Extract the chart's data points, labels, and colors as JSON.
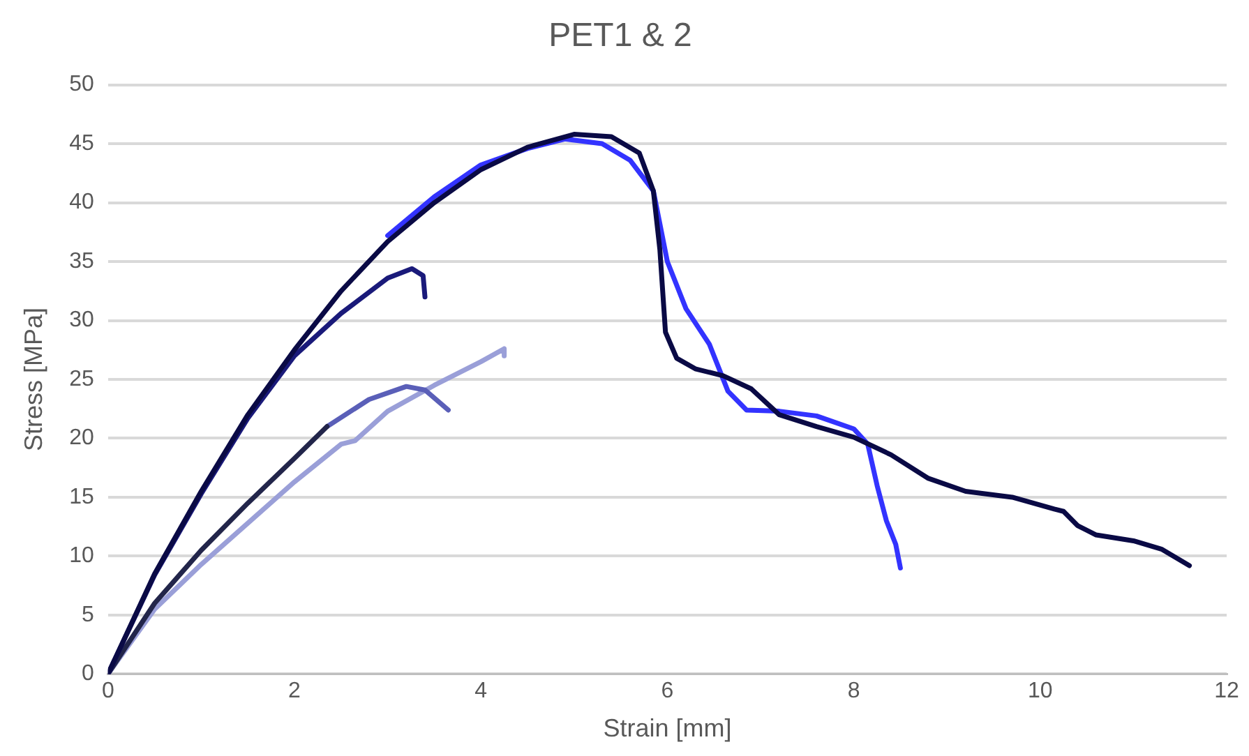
{
  "chart_data": {
    "type": "line",
    "title": "PET1 & 2",
    "xlabel": "Strain [mm]",
    "ylabel": "Stress [MPa]",
    "xlim": [
      0,
      12
    ],
    "xticks": [
      0,
      2,
      4,
      6,
      8,
      10,
      12
    ],
    "ylim": [
      0,
      50
    ],
    "yticks": [
      0,
      5,
      10,
      15,
      20,
      25,
      30,
      35,
      40,
      45,
      50
    ],
    "grid": "y",
    "legend": false,
    "marker": "none",
    "line_style": "solid",
    "series": [
      {
        "color": "#9a9fd8",
        "x": [
          0,
          0.5,
          1,
          1.5,
          2,
          2.5,
          2.65,
          3,
          3.5,
          4,
          4.25,
          4.25
        ],
        "values": [
          0,
          5.5,
          9.3,
          12.8,
          16.3,
          19.5,
          19.8,
          22.3,
          24.5,
          26.5,
          27.6,
          27
        ]
      },
      {
        "color": "#5a5fb8",
        "x": [
          2.35,
          2.8,
          3.2,
          3.4,
          3.65
        ],
        "values": [
          21,
          23.3,
          24.4,
          24.1,
          22.4
        ]
      },
      {
        "color": "#22254a",
        "x": [
          0,
          0.5,
          1,
          1.5,
          2,
          2.35
        ],
        "values": [
          0,
          6,
          10.5,
          14.5,
          18.3,
          21
        ]
      },
      {
        "color": "#1a1a7a",
        "x": [
          0,
          0.5,
          1,
          1.5,
          2,
          2.5,
          3,
          3.26,
          3.38,
          3.4
        ],
        "values": [
          0,
          8.4,
          15.3,
          21.7,
          27,
          30.6,
          33.6,
          34.4,
          33.8,
          32
        ]
      },
      {
        "color": "#3333ff",
        "x": [
          3,
          3.5,
          4,
          4.5,
          4.9,
          5.3,
          5.6,
          5.85,
          6.0,
          6.2,
          6.45,
          6.65,
          6.85,
          7.2,
          7.6,
          8.0,
          8.15,
          8.25,
          8.35,
          8.45,
          8.5
        ],
        "values": [
          37.2,
          40.5,
          43.2,
          44.6,
          45.4,
          45,
          43.6,
          41,
          35,
          31,
          28,
          24,
          22.4,
          22.3,
          21.9,
          20.8,
          19.5,
          16,
          13,
          11,
          9
        ]
      },
      {
        "color": "#0a0a45",
        "x": [
          0,
          0.5,
          1,
          1.5,
          2,
          2.5,
          3,
          3.5,
          4,
          4.5,
          5,
          5.4,
          5.7,
          5.85,
          5.92,
          5.98,
          6.1,
          6.3,
          6.6,
          6.9,
          7.2,
          7.6,
          8.0,
          8.4,
          8.8,
          9.2,
          9.7,
          10.15,
          10.25,
          10.4,
          10.6,
          11.0,
          11.3,
          11.6
        ],
        "values": [
          0,
          8.5,
          15.5,
          22,
          27.5,
          32.5,
          36.7,
          40,
          42.8,
          44.7,
          45.8,
          45.6,
          44.2,
          41,
          36,
          29,
          26.8,
          25.9,
          25.3,
          24.2,
          22,
          21,
          20.1,
          18.6,
          16.6,
          15.5,
          15,
          14,
          13.8,
          12.6,
          11.8,
          11.3,
          10.6,
          9.2
        ]
      }
    ]
  }
}
